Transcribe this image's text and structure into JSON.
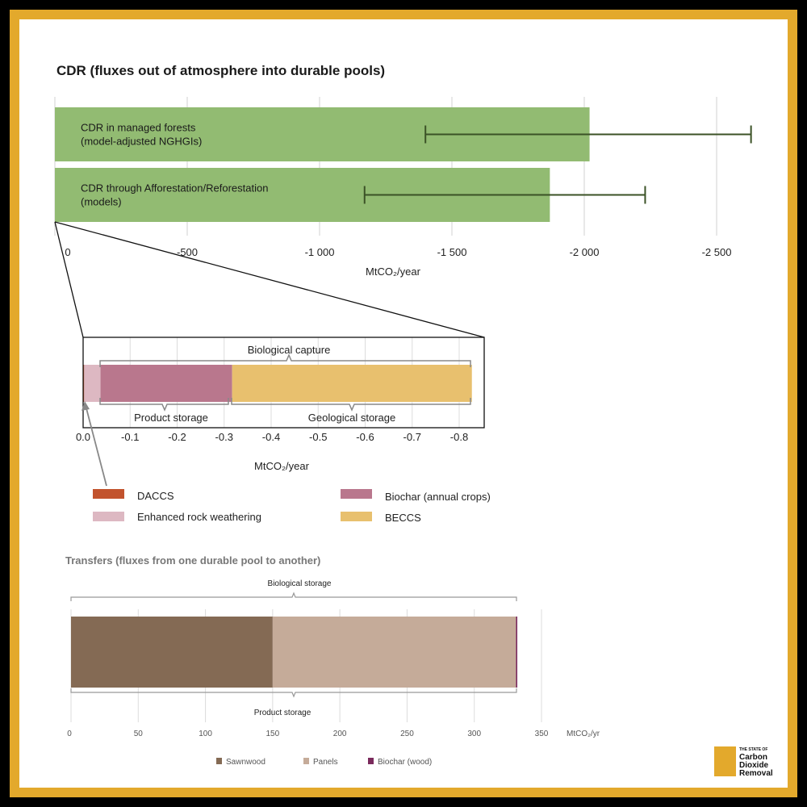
{
  "colors": {
    "frame": "#e3a92c",
    "forest_bar": "#92bb72",
    "error_bar": "#3b5226",
    "daccs": "#c2532d",
    "erw": "#ddb8c2",
    "biochar_annual": "#b9778d",
    "beccs": "#e8c06e",
    "sawnwood": "#846a54",
    "panels": "#c5ab99",
    "biochar_wood": "#7a2a5c",
    "logo": "#e3a92c"
  },
  "chart_data": [
    {
      "type": "bar",
      "orientation": "horizontal",
      "title": "CDR (fluxes out of atmosphere into durable pools)",
      "xlabel": "MtCO₂/year",
      "xlim": [
        0,
        -2600
      ],
      "xticks": [
        0,
        -500,
        -1000,
        -1500,
        -2000,
        -2500
      ],
      "xtick_labels": [
        "0",
        "-500",
        "-1 000",
        "-1 500",
        "-2 000",
        "-2 500"
      ],
      "grid": true,
      "categories": [
        [
          "CDR in managed forests",
          "(model-adjusted NGHGIs)"
        ],
        [
          "CDR through Afforestation/Reforestation",
          "(models)"
        ]
      ],
      "values": [
        -2020,
        -1870
      ],
      "error_low": [
        -1400,
        -1170
      ],
      "error_high": [
        -2630,
        -2230
      ]
    },
    {
      "type": "bar",
      "orientation": "horizontal",
      "stacked": true,
      "xlabel": "MtCO₂/year",
      "xlim": [
        0,
        -0.85
      ],
      "xticks": [
        0,
        -0.1,
        -0.2,
        -0.3,
        -0.4,
        -0.5,
        -0.6,
        -0.7,
        -0.8
      ],
      "xtick_labels": [
        "0.0",
        "-0.1",
        "-0.2",
        "-0.3",
        "-0.4",
        "-0.5",
        "-0.6",
        "-0.7",
        "-0.8"
      ],
      "grid": true,
      "series": [
        {
          "name": "DACCS",
          "values": [
            -0.002
          ]
        },
        {
          "name": "Enhanced rock weathering",
          "values": [
            -0.035
          ]
        },
        {
          "name": "Biochar (annual crops)",
          "values": [
            -0.28
          ]
        },
        {
          "name": "BECCS",
          "values": [
            -0.51
          ]
        }
      ],
      "annotations": [
        "Biological capture",
        "Product storage",
        "Geological storage"
      ],
      "legend": "below"
    },
    {
      "type": "bar",
      "orientation": "horizontal",
      "stacked": true,
      "title": "Transfers (fluxes from one durable pool to another)",
      "xlabel": "MtCO₂/yr",
      "xlim": [
        0,
        360
      ],
      "xticks": [
        0,
        50,
        100,
        150,
        200,
        250,
        300,
        350
      ],
      "xtick_labels": [
        "0",
        "50",
        "100",
        "150",
        "200",
        "250",
        "300",
        "350"
      ],
      "grid": true,
      "series": [
        {
          "name": "Sawnwood",
          "values": [
            150
          ]
        },
        {
          "name": "Panels",
          "values": [
            181
          ]
        },
        {
          "name": "Biochar (wood)",
          "values": [
            1
          ]
        }
      ],
      "annotations": [
        "Biological storage",
        "Product storage"
      ],
      "legend": "bottom"
    }
  ],
  "logo": {
    "top_line": "THE STATE OF",
    "lines": [
      "Carbon",
      "Dioxide",
      "Removal"
    ]
  }
}
